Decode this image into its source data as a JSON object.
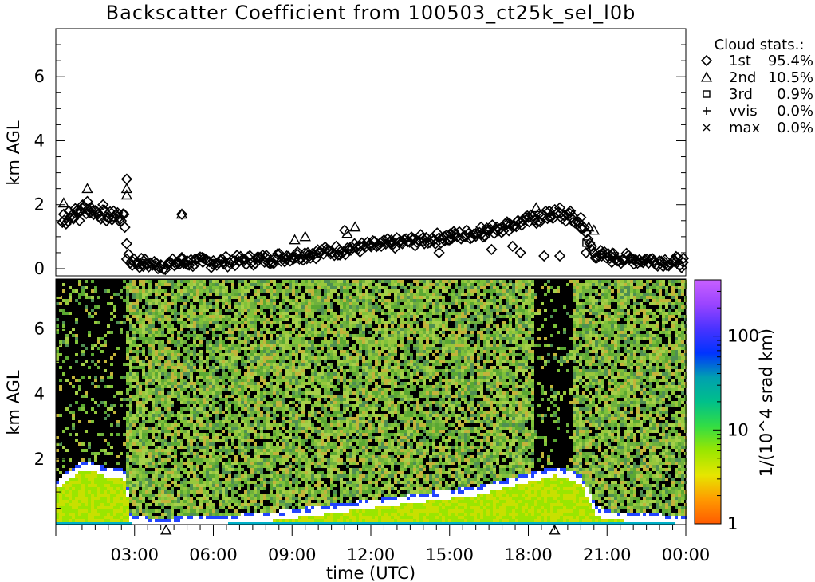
{
  "title": "Backscatter Coefficient from 100503_ct25k_sel_l0b",
  "top_panel": {
    "ylabel": "km AGL",
    "ylim": [
      0,
      7.5
    ],
    "yticks": [
      0,
      2,
      4,
      6
    ],
    "legend": {
      "title": "Cloud stats.:",
      "placement": "right, outside plot",
      "entries": [
        {
          "marker": "diamond",
          "symbol": "◇",
          "label": "1st",
          "value": "95.4%"
        },
        {
          "marker": "triangle",
          "symbol": "△",
          "label": "2nd",
          "value": "10.5%"
        },
        {
          "marker": "square",
          "symbol": "□",
          "label": "3rd",
          "value": "0.9%"
        },
        {
          "marker": "plus",
          "symbol": "+",
          "label": "vvis",
          "value": "0.0%"
        },
        {
          "marker": "cross",
          "symbol": "×",
          "label": "max",
          "value": "0.0%"
        }
      ]
    }
  },
  "bottom_panel": {
    "ylabel": "km AGL",
    "ylim": [
      0,
      7.5
    ],
    "yticks": [
      2,
      4,
      6
    ],
    "xlabel": "time (UTC)",
    "xticks": [
      "03:00",
      "06:00",
      "09:00",
      "12:00",
      "15:00",
      "18:00",
      "21:00",
      "00:00"
    ],
    "colorbar": {
      "label": "1/(10^4 srad km)",
      "scale": "log",
      "ticks": [
        "1",
        "10",
        "100"
      ],
      "colors": [
        "#ff5a00",
        "#ff9a00",
        "#e6e600",
        "#9ae600",
        "#33dd44",
        "#00c08a",
        "#00a0b0",
        "#0033ff",
        "#4a33ff",
        "#9a44ff",
        "#c860ff"
      ]
    },
    "event_markers": [
      {
        "marker": "triangle",
        "hour": 4.2
      },
      {
        "marker": "triangle",
        "hour": 19.0
      }
    ]
  },
  "chart_data": {
    "type": "scatter",
    "x_unit": "hours UTC",
    "xlim": [
      0,
      24
    ],
    "y_unit": "km AGL",
    "series": [
      {
        "name": "1st",
        "marker": "diamond",
        "x": [
          0.3,
          0.5,
          0.7,
          0.9,
          1.0,
          1.2,
          1.4,
          1.6,
          1.8,
          2.0,
          2.2,
          2.4,
          2.6,
          2.7,
          2.9,
          3.1,
          3.3,
          3.5,
          3.8,
          4.0,
          4.3,
          4.6,
          4.8,
          5.0,
          5.3,
          5.6,
          6.0,
          6.4,
          6.8,
          7.2,
          7.6,
          8.0,
          8.4,
          8.8,
          9.2,
          9.6,
          10.0,
          10.4,
          10.8,
          11.2,
          11.6,
          12.0,
          12.4,
          12.8,
          13.2,
          13.6,
          14.0,
          14.4,
          14.8,
          15.2,
          15.6,
          16.0,
          16.4,
          16.8,
          17.2,
          17.6,
          18.0,
          18.4,
          18.8,
          19.2,
          19.6,
          20.0,
          20.4,
          20.8,
          21.2,
          21.6,
          22.0,
          22.4,
          22.8,
          23.2,
          23.6,
          23.9,
          4.8,
          2.7,
          11.0,
          14.6,
          16.6,
          17.7,
          19.2,
          20.2,
          15.0,
          16.2,
          17.4,
          18.6
        ],
        "y": [
          1.7,
          1.8,
          1.6,
          1.5,
          1.9,
          2.1,
          1.8,
          1.7,
          2.0,
          1.6,
          1.8,
          1.5,
          1.7,
          0.3,
          0.25,
          0.2,
          0.15,
          0.15,
          0.1,
          0.12,
          0.15,
          0.2,
          0.35,
          0.25,
          0.3,
          0.2,
          0.25,
          0.2,
          0.25,
          0.3,
          0.3,
          0.35,
          0.3,
          0.4,
          0.45,
          0.5,
          0.5,
          0.55,
          0.6,
          0.65,
          0.7,
          0.75,
          0.7,
          0.8,
          0.85,
          0.9,
          0.85,
          0.9,
          1.0,
          1.1,
          1.0,
          1.1,
          1.2,
          1.3,
          1.4,
          1.5,
          1.6,
          1.7,
          1.8,
          1.9,
          1.8,
          1.6,
          0.6,
          0.4,
          0.35,
          0.3,
          0.3,
          0.25,
          0.2,
          0.2,
          0.2,
          0.2,
          1.7,
          2.8,
          1.2,
          0.5,
          0.6,
          0.5,
          0.4,
          0.5,
          0.9,
          1.3,
          0.7,
          0.4
        ]
      },
      {
        "name": "2nd",
        "marker": "triangle",
        "x": [
          0.3,
          1.2,
          2.7,
          2.7,
          9.1,
          9.5,
          11.1,
          11.4,
          18.3,
          19.7,
          20.3,
          20.5,
          21.2,
          21.9,
          4.8
        ],
        "y": [
          2.05,
          2.5,
          2.5,
          2.3,
          0.9,
          1.0,
          1.1,
          1.3,
          1.9,
          1.7,
          1.3,
          1.2,
          0.5,
          0.3,
          1.7
        ]
      },
      {
        "name": "3rd",
        "marker": "square",
        "x": [
          20.2,
          20.8,
          21.3
        ],
        "y": [
          0.8,
          0.45,
          0.4
        ]
      }
    ],
    "backscatter_curtain": {
      "type": "heatmap",
      "cloud_base_track": {
        "x": [
          0,
          0.5,
          1.0,
          1.5,
          2.0,
          2.4,
          2.6,
          2.8,
          3.0,
          3.5,
          4.0,
          4.5,
          5.0,
          5.5,
          6.0,
          7.0,
          8.0,
          9.0,
          10.0,
          11.0,
          12.0,
          13.0,
          14.0,
          15.0,
          15.5,
          16.0,
          16.5,
          17.0,
          17.5,
          18.0,
          18.5,
          19.0,
          19.5,
          20.0,
          20.5,
          21.0,
          22.0,
          23.0,
          24.0
        ],
        "y": [
          1.3,
          1.6,
          1.9,
          1.8,
          1.6,
          1.7,
          1.5,
          0.25,
          0.2,
          0.15,
          0.12,
          0.15,
          0.2,
          0.2,
          0.2,
          0.25,
          0.3,
          0.4,
          0.5,
          0.6,
          0.7,
          0.8,
          0.9,
          1.0,
          1.05,
          1.1,
          1.2,
          1.3,
          1.4,
          1.5,
          1.6,
          1.7,
          1.6,
          1.4,
          0.5,
          0.35,
          0.3,
          0.25,
          0.2
        ]
      }
    }
  }
}
